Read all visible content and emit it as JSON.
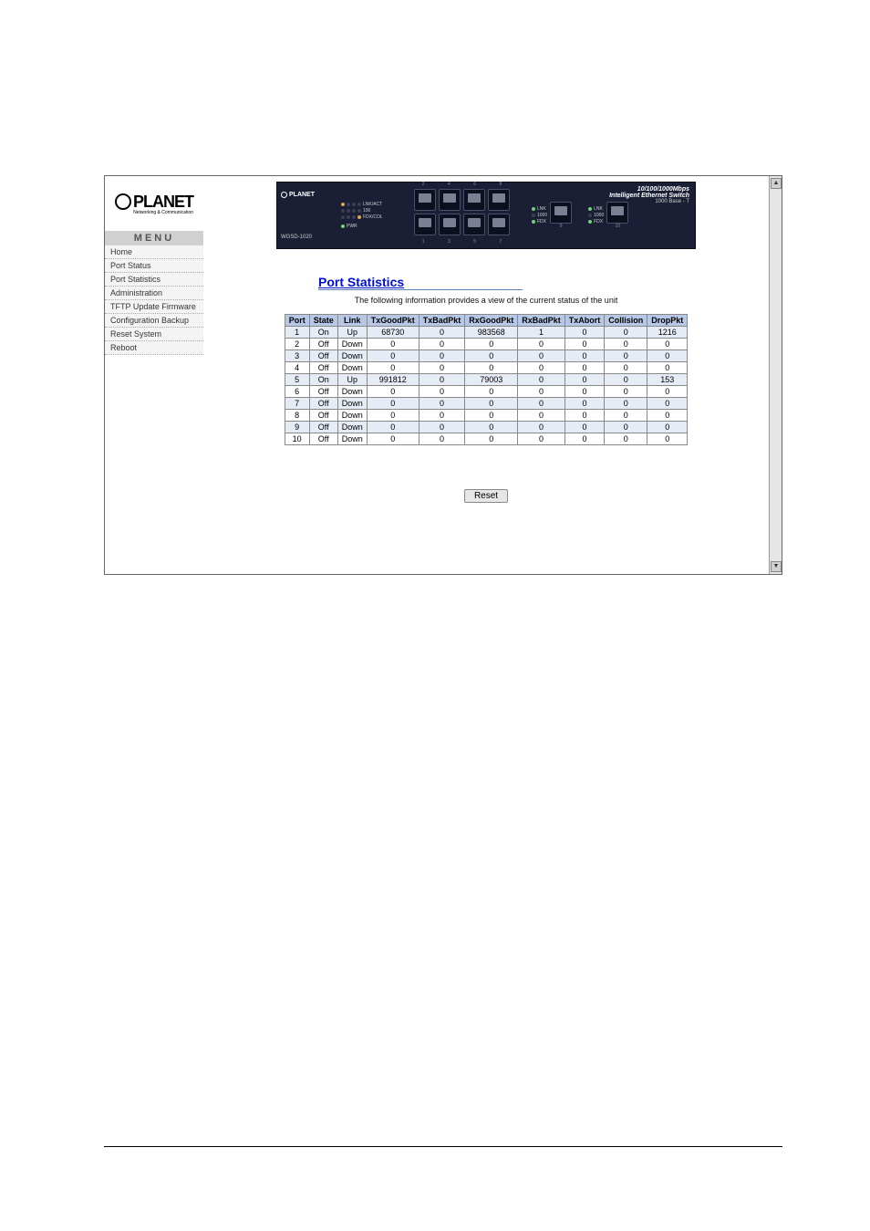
{
  "brand": {
    "name": "PLANET",
    "tagline": "Networking & Communication"
  },
  "menu": {
    "header": "MENU",
    "items": [
      "Home",
      "Port Status",
      "Port Statistics",
      "Administration",
      "TFTP Update Firmware",
      "Configuration Backup",
      "Reset System",
      "Reboot"
    ]
  },
  "switch_panel": {
    "model": "WGSD-1020",
    "title_line1": "10/100/1000Mbps",
    "title_line2": "Intelligent Ethernet Switch",
    "gig_label": "1000 Base - T",
    "led_labels": [
      "LNK/ACT",
      "100",
      "FDX/COL"
    ],
    "gig_led_labels": [
      "LNK",
      "1000",
      "FDX"
    ],
    "port_numbers_top": [
      "2",
      "4",
      "6",
      "8"
    ],
    "port_numbers_bottom": [
      "1",
      "3",
      "5",
      "7"
    ],
    "gig_ports": [
      "9",
      "10"
    ],
    "pwr_label": "PWR"
  },
  "page": {
    "title": "Port Statistics",
    "subtitle": "The following information provides a view of the current status of the unit"
  },
  "stats_table": {
    "columns": [
      "Port",
      "State",
      "Link",
      "TxGoodPkt",
      "TxBadPkt",
      "RxGoodPkt",
      "RxBadPkt",
      "TxAbort",
      "Collision",
      "DropPkt"
    ],
    "rows": [
      [
        "1",
        "On",
        "Up",
        "68730",
        "0",
        "983568",
        "1",
        "0",
        "0",
        "1216"
      ],
      [
        "2",
        "Off",
        "Down",
        "0",
        "0",
        "0",
        "0",
        "0",
        "0",
        "0"
      ],
      [
        "3",
        "Off",
        "Down",
        "0",
        "0",
        "0",
        "0",
        "0",
        "0",
        "0"
      ],
      [
        "4",
        "Off",
        "Down",
        "0",
        "0",
        "0",
        "0",
        "0",
        "0",
        "0"
      ],
      [
        "5",
        "On",
        "Up",
        "991812",
        "0",
        "79003",
        "0",
        "0",
        "0",
        "153"
      ],
      [
        "6",
        "Off",
        "Down",
        "0",
        "0",
        "0",
        "0",
        "0",
        "0",
        "0"
      ],
      [
        "7",
        "Off",
        "Down",
        "0",
        "0",
        "0",
        "0",
        "0",
        "0",
        "0"
      ],
      [
        "8",
        "Off",
        "Down",
        "0",
        "0",
        "0",
        "0",
        "0",
        "0",
        "0"
      ],
      [
        "9",
        "Off",
        "Down",
        "0",
        "0",
        "0",
        "0",
        "0",
        "0",
        "0"
      ],
      [
        "10",
        "Off",
        "Down",
        "0",
        "0",
        "0",
        "0",
        "0",
        "0",
        "0"
      ]
    ],
    "header_bg": "#b7c8e6",
    "alt_row_bg": "#e6ecf5",
    "border_color": "#888888"
  },
  "buttons": {
    "reset": "Reset"
  }
}
